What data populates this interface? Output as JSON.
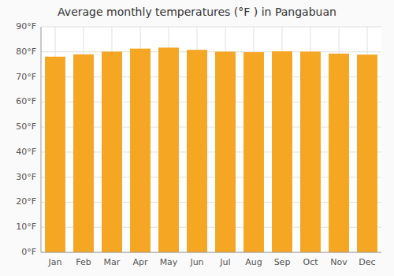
{
  "chart_data": {
    "type": "bar",
    "title": "Average monthly temperatures (°F ) in Pangabuan",
    "categories": [
      "Jan",
      "Feb",
      "Mar",
      "Apr",
      "May",
      "Jun",
      "Jul",
      "Aug",
      "Sep",
      "Oct",
      "Nov",
      "Dec"
    ],
    "values": [
      78.1,
      79.0,
      80.1,
      81.3,
      81.7,
      80.8,
      80.1,
      79.9,
      80.2,
      80.1,
      79.3,
      78.9
    ],
    "color": "#F5A623",
    "ylim": [
      0,
      90
    ],
    "yticks": [
      {
        "value": 0,
        "label": "0°F"
      },
      {
        "value": 10,
        "label": "10°F"
      },
      {
        "value": 20,
        "label": "20°F"
      },
      {
        "value": 30,
        "label": "30°F"
      },
      {
        "value": 40,
        "label": "40°F"
      },
      {
        "value": 50,
        "label": "50°F"
      },
      {
        "value": 60,
        "label": "60°F"
      },
      {
        "value": 70,
        "label": "70°F"
      },
      {
        "value": 80,
        "label": "80°F"
      },
      {
        "value": 90,
        "label": "90°F"
      }
    ],
    "grid": true
  }
}
